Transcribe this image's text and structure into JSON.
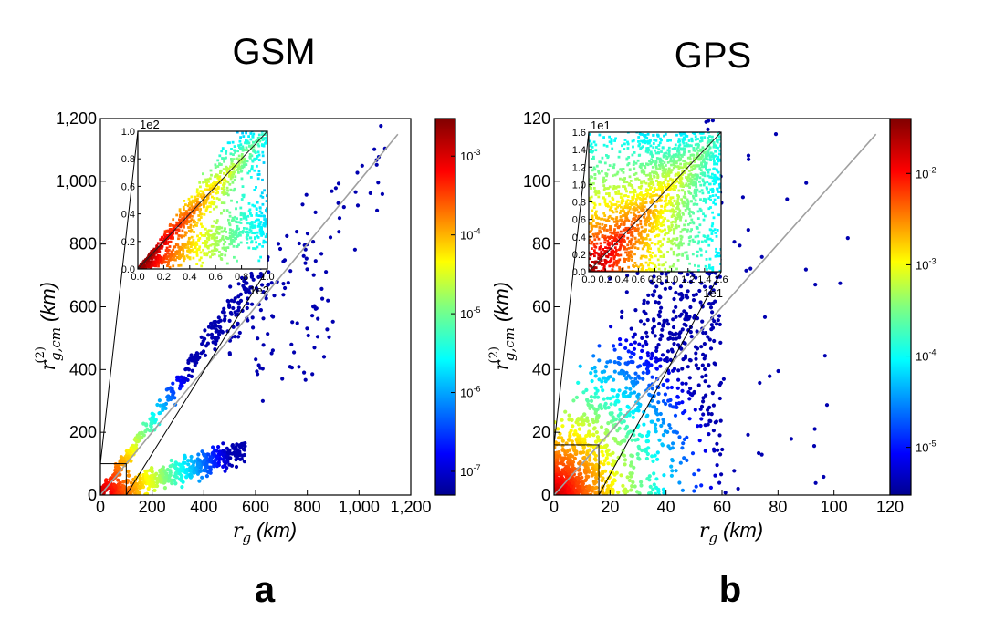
{
  "chart_data": [
    {
      "type": "scatter",
      "panel": "a",
      "title": "GSM",
      "xlabel": {
        "symbol": "r",
        "subscript": "g",
        "unit": "(km)"
      },
      "ylabel": {
        "symbol": "r",
        "superscript": "(2)",
        "subscript": "g,cm",
        "unit": "(km)"
      },
      "xlim": [
        0,
        1200
      ],
      "ylim": [
        0,
        1200
      ],
      "x_ticks": [
        "0",
        "200",
        "400",
        "600",
        "800",
        "1,000",
        "1,200"
      ],
      "y_ticks": [
        "0",
        "200",
        "400",
        "600",
        "800",
        "1,000",
        "1,200"
      ],
      "diagonal": {
        "x": [
          0,
          1150
        ],
        "y": [
          0,
          1150
        ]
      },
      "zoom_box": {
        "x": [
          0,
          100
        ],
        "y": [
          0,
          100
        ]
      },
      "colorbar": {
        "scale": "log",
        "min": 5e-08,
        "max": 0.003,
        "ticks": [
          {
            "value": 0.001,
            "base": "10",
            "exp": "-3"
          },
          {
            "value": 0.0001,
            "base": "10",
            "exp": "-4"
          },
          {
            "value": 1e-05,
            "base": "10",
            "exp": "-5"
          },
          {
            "value": 1e-06,
            "base": "10",
            "exp": "-6"
          },
          {
            "value": 1e-07,
            "base": "10",
            "exp": "-7"
          }
        ]
      },
      "inset": {
        "xlim": [
          0,
          1.0
        ],
        "ylim": [
          0,
          1.0
        ],
        "x_ticks": [
          "0.0",
          "0.2",
          "0.4",
          "0.6",
          "0.8",
          "1.0"
        ],
        "y_ticks": [
          "0.0",
          "0.2",
          "0.4",
          "0.6",
          "0.8",
          "1.0"
        ],
        "x_offset": "1e2",
        "y_offset": "1e2"
      },
      "clusters": [
        {
          "name": "",
          "n": 380,
          "x0": 0,
          "x1": 650,
          "relation": "diagonal",
          "slope": 1.18,
          "spread": 22
        },
        {
          "name": "",
          "n": 520,
          "x0": 40,
          "x1": 560,
          "relation": "lower-band",
          "slope": 0.28,
          "spread": 18
        },
        {
          "name": "",
          "n": 90,
          "x0": 500,
          "x1": 1110,
          "relation": "diagonal",
          "slope": 1.0,
          "spread": 60
        },
        {
          "name": "",
          "n": 40,
          "x0": 600,
          "x1": 900,
          "relation": "scatter-below",
          "slope": 0.6,
          "spread": 80
        }
      ]
    },
    {
      "type": "scatter",
      "panel": "b",
      "title": "GPS",
      "xlabel": {
        "symbol": "r",
        "subscript": "g",
        "unit": "(km)"
      },
      "ylabel": {
        "symbol": "r",
        "superscript": "(2)",
        "subscript": "g,cm",
        "unit": "(km)"
      },
      "xlim": [
        0,
        120
      ],
      "ylim": [
        0,
        120
      ],
      "x_ticks": [
        "0",
        "20",
        "40",
        "60",
        "80",
        "100",
        "120"
      ],
      "y_ticks": [
        "0",
        "20",
        "40",
        "60",
        "80",
        "100",
        "120"
      ],
      "diagonal": {
        "x": [
          0,
          115
        ],
        "y": [
          0,
          115
        ]
      },
      "zoom_box": {
        "x": [
          0,
          16
        ],
        "y": [
          0,
          16
        ]
      },
      "colorbar": {
        "scale": "log",
        "min": 3e-06,
        "max": 0.04,
        "ticks": [
          {
            "value": 0.01,
            "base": "10",
            "exp": "-2"
          },
          {
            "value": 0.001,
            "base": "10",
            "exp": "-3"
          },
          {
            "value": 0.0001,
            "base": "10",
            "exp": "-4"
          },
          {
            "value": 1e-05,
            "base": "10",
            "exp": "-5"
          }
        ]
      },
      "inset": {
        "xlim": [
          0,
          1.6
        ],
        "ylim": [
          0,
          1.6
        ],
        "x_ticks": [
          "0.0",
          "0.2",
          "0.4",
          "0.6",
          "0.8",
          "1.0",
          "1.2",
          "1.4",
          "1.6"
        ],
        "y_ticks": [
          "0.0",
          "0.2",
          "0.4",
          "0.6",
          "0.8",
          "1.0",
          "1.2",
          "1.4",
          "1.6"
        ],
        "x_offset": "1e1",
        "y_offset": "1e1"
      },
      "clusters": [
        {
          "name": "",
          "n": 1400,
          "x0": 0,
          "x1": 60,
          "relation": "broad",
          "slope": 1.0,
          "spread": 14
        },
        {
          "name": "",
          "n": 60,
          "x0": 55,
          "x1": 105,
          "relation": "broad",
          "slope": 0.9,
          "spread": 25
        }
      ]
    }
  ],
  "colors": {
    "diagonal": "#a0a0a0",
    "zoom_lines": "#000000",
    "points_low": "#1b1bd8"
  }
}
